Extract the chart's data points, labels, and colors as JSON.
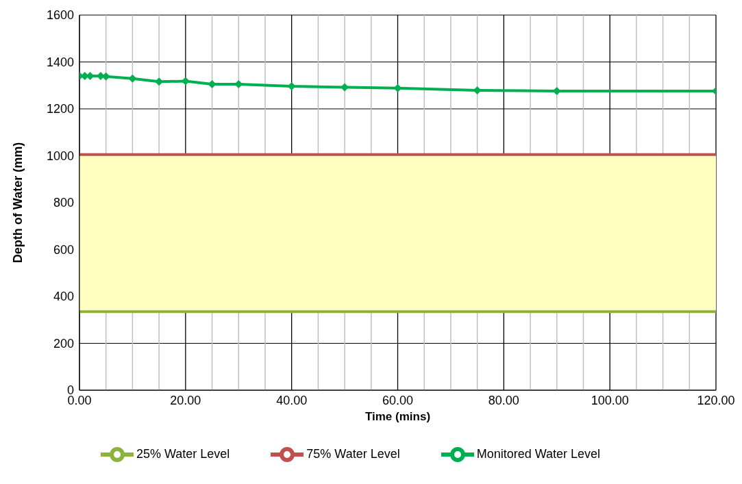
{
  "chart_data": {
    "type": "line",
    "xlabel": "Time (mins)",
    "ylabel": "Depth of Water (mm)",
    "xlim": [
      0,
      120
    ],
    "ylim": [
      0,
      1600
    ],
    "xticks": [
      {
        "value": 0,
        "label": "0.00"
      },
      {
        "value": 5,
        "label": null
      },
      {
        "value": 10,
        "label": null
      },
      {
        "value": 15,
        "label": null
      },
      {
        "value": 20,
        "label": "20.00"
      },
      {
        "value": 25,
        "label": null
      },
      {
        "value": 30,
        "label": null
      },
      {
        "value": 35,
        "label": null
      },
      {
        "value": 40,
        "label": "40.00"
      },
      {
        "value": 45,
        "label": null
      },
      {
        "value": 50,
        "label": null
      },
      {
        "value": 55,
        "label": null
      },
      {
        "value": 60,
        "label": "60.00"
      },
      {
        "value": 65,
        "label": null
      },
      {
        "value": 70,
        "label": null
      },
      {
        "value": 75,
        "label": null
      },
      {
        "value": 80,
        "label": "80.00"
      },
      {
        "value": 85,
        "label": null
      },
      {
        "value": 90,
        "label": null
      },
      {
        "value": 95,
        "label": null
      },
      {
        "value": 100,
        "label": "100.00"
      },
      {
        "value": 105,
        "label": null
      },
      {
        "value": 110,
        "label": null
      },
      {
        "value": 115,
        "label": null
      },
      {
        "value": 120,
        "label": "120.00"
      }
    ],
    "yticks": [
      0,
      200,
      400,
      600,
      800,
      1000,
      1200,
      1400,
      1600
    ],
    "grid": true,
    "legend": "bottom",
    "bands": [
      {
        "axis": "y",
        "from": 335,
        "to": 1005,
        "color": "#ffffc2"
      }
    ],
    "series": [
      {
        "name": "Monitored Water Level",
        "color": "#00b050",
        "marker": "diamond",
        "x": [
          0,
          1,
          2,
          4,
          5,
          10,
          15,
          20,
          25,
          30,
          40,
          50,
          60,
          75,
          90,
          120
        ],
        "values": [
          1340,
          1340,
          1340,
          1340,
          1338,
          1329,
          1316,
          1318,
          1305,
          1305,
          1296,
          1292,
          1288,
          1279,
          1276,
          1276
        ]
      },
      {
        "name": "75% Water Level",
        "color": "#c0504d",
        "marker": "none",
        "x": [
          0,
          120
        ],
        "values": [
          1005,
          1005
        ]
      },
      {
        "name": "25% Water Level",
        "color": "#8db33f",
        "marker": "none",
        "x": [
          0,
          120
        ],
        "values": [
          335,
          335
        ]
      }
    ]
  }
}
